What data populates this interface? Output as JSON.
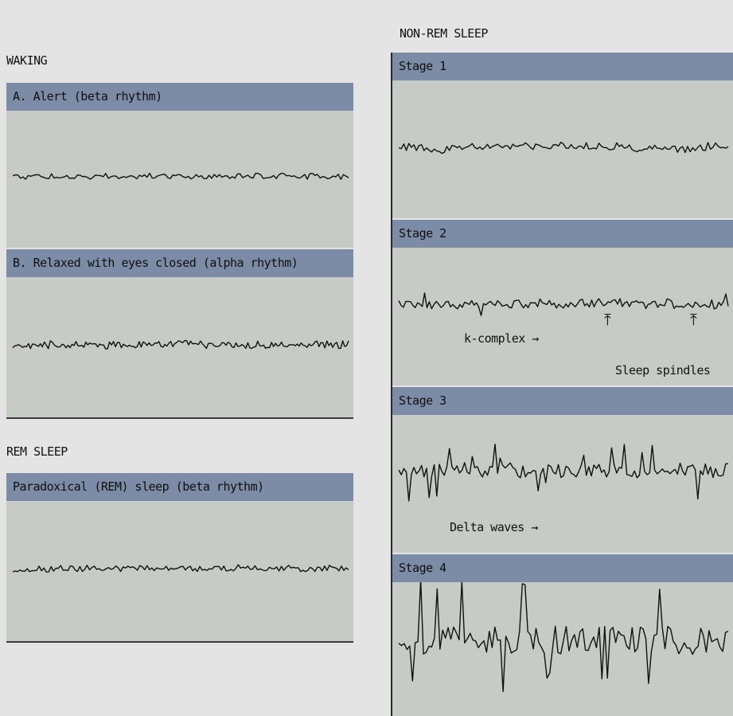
{
  "waking": {
    "title": "WAKING",
    "alert": {
      "label": "A. Alert (beta rhythm)",
      "wave": {
        "seed": 11,
        "n": 130,
        "amp": 3.5,
        "drift": 4,
        "spikes": 0
      }
    },
    "relaxed": {
      "label": "B. Relaxed with eyes closed (alpha rhythm)",
      "wave": {
        "seed": 23,
        "n": 170,
        "amp": 5,
        "drift": 2,
        "spikes": 0
      }
    }
  },
  "rem": {
    "title": "REM SLEEP",
    "paradoxical": {
      "label": "Paradoxical (REM) sleep (beta rhythm)",
      "wave": {
        "seed": 37,
        "n": 140,
        "amp": 4,
        "drift": 3,
        "spikes": 0
      }
    }
  },
  "nonrem": {
    "title": "NON-REM SLEEP",
    "stage1": {
      "label": "Stage 1",
      "wave": {
        "seed": 5,
        "n": 130,
        "amp": 5,
        "drift": 10,
        "spikes": 0
      }
    },
    "stage2": {
      "label": "Stage 2",
      "wave": {
        "seed": 41,
        "n": 140,
        "amp": 6,
        "drift": 3,
        "spikes": 1
      },
      "kcomplex": "k-complex",
      "spindles": "Sleep spindles"
    },
    "stage3": {
      "label": "Stage 3",
      "wave": {
        "seed": 59,
        "n": 130,
        "amp": 9,
        "drift": 4,
        "spikes": 2
      },
      "delta": "Delta waves"
    },
    "stage4": {
      "label": "Stage 4",
      "wave": {
        "seed": 73,
        "n": 120,
        "amp": 18,
        "drift": 5,
        "spikes": 3
      }
    }
  },
  "colors": {
    "background": "#e4e4e4",
    "panel": "#c6ccc5",
    "header": "#7c8ca6",
    "trace": "#111111"
  }
}
